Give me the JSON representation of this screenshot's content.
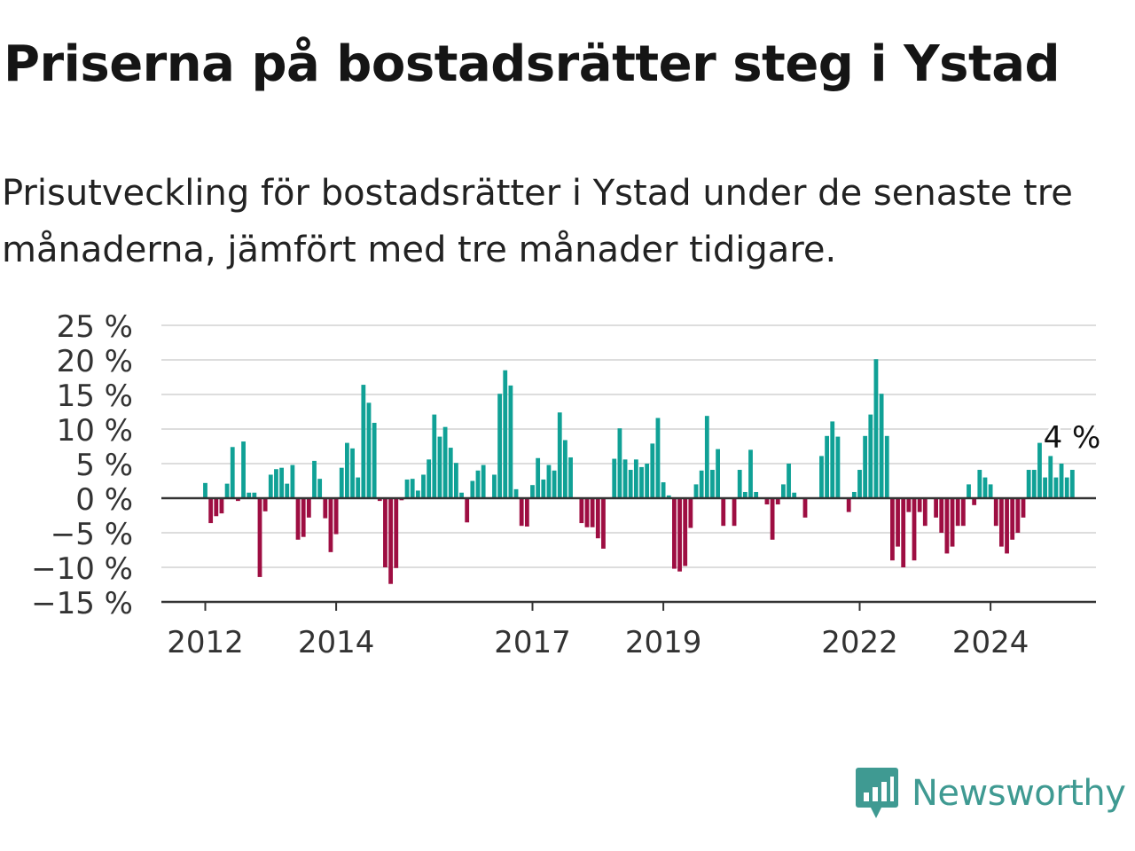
{
  "title": "Priserna på bostadsrätter steg i Ystad",
  "subtitle": "Prisutveckling för bostadsrätter i Ystad under de senaste tre månaderna, jämfört med tre månader tidigare.",
  "brand": {
    "name": "Newsworthy",
    "icon": "newsworthy-logo-icon",
    "color": "#3f9a92"
  },
  "colors": {
    "positive": "#10a196",
    "negative": "#9e0e42",
    "grid": "#dddddd",
    "axis": "#333333"
  },
  "chart_data": {
    "type": "bar",
    "x_start": "2012-01",
    "frequency": "monthly",
    "ylim": [
      -15,
      25
    ],
    "y_ticks": [
      25,
      20,
      15,
      10,
      5,
      0,
      -5,
      -10,
      -15
    ],
    "y_tick_labels": [
      "25 %",
      "20 %",
      "15 %",
      "10 %",
      "5 %",
      "0 %",
      "−5 %",
      "−10 %",
      "−15 %"
    ],
    "x_ticks": [
      "2012",
      "2014",
      "2017",
      "2019",
      "2022",
      "2024"
    ],
    "grid": true,
    "last_value_label": "4 %",
    "values": [
      2.2,
      -3.6,
      -2.6,
      -2.2,
      2.1,
      7.4,
      -0.4,
      8.2,
      0.8,
      0.8,
      -11.4,
      -1.9,
      3.4,
      4.2,
      4.4,
      2.1,
      4.8,
      -6.0,
      -5.6,
      -2.8,
      5.4,
      2.8,
      -2.9,
      -7.8,
      -5.2,
      4.4,
      8.0,
      7.2,
      3.0,
      16.4,
      13.8,
      10.9,
      -0.4,
      -10.0,
      -12.4,
      -10.1,
      -0.3,
      2.7,
      2.8,
      1.1,
      3.4,
      5.6,
      12.1,
      8.9,
      10.3,
      7.3,
      5.1,
      0.8,
      -3.5,
      2.5,
      4.0,
      4.8,
      0.1,
      3.4,
      15.1,
      18.5,
      16.3,
      1.3,
      -4.0,
      -4.1,
      1.9,
      5.8,
      2.7,
      4.8,
      4.0,
      12.4,
      8.4,
      5.9,
      0.1,
      -3.6,
      -4.2,
      -4.2,
      -5.8,
      -7.3,
      0.1,
      5.7,
      10.1,
      5.6,
      4.1,
      5.6,
      4.5,
      5.0,
      7.9,
      11.6,
      2.3,
      0.4,
      -10.2,
      -10.6,
      -9.8,
      -4.3,
      2.0,
      4.0,
      11.9,
      4.1,
      7.1,
      -4.0,
      0.1,
      -4.0,
      4.1,
      0.9,
      7.0,
      0.9,
      0.1,
      -0.9,
      -6.0,
      -0.9,
      2.0,
      5.0,
      0.8,
      0.1,
      -2.8,
      0.1,
      0.1,
      6.1,
      9.0,
      11.1,
      8.9,
      0.1,
      -2.0,
      0.9,
      4.1,
      9.0,
      12.1,
      20.1,
      15.1,
      9.0,
      -9.0,
      -7.0,
      -10.0,
      -2.0,
      -9.0,
      -2.0,
      -4.0,
      0.1,
      -2.8,
      -5.0,
      -8.0,
      -7.0,
      -4.0,
      -4.0,
      2.0,
      -1.0,
      4.1,
      3.0,
      2.0,
      -4.0,
      -7.0,
      -8.0,
      -6.0,
      -5.0,
      -2.8,
      4.1,
      4.1,
      8.0,
      3.0,
      6.1,
      3.0,
      5.0,
      3.0,
      4.1
    ]
  }
}
